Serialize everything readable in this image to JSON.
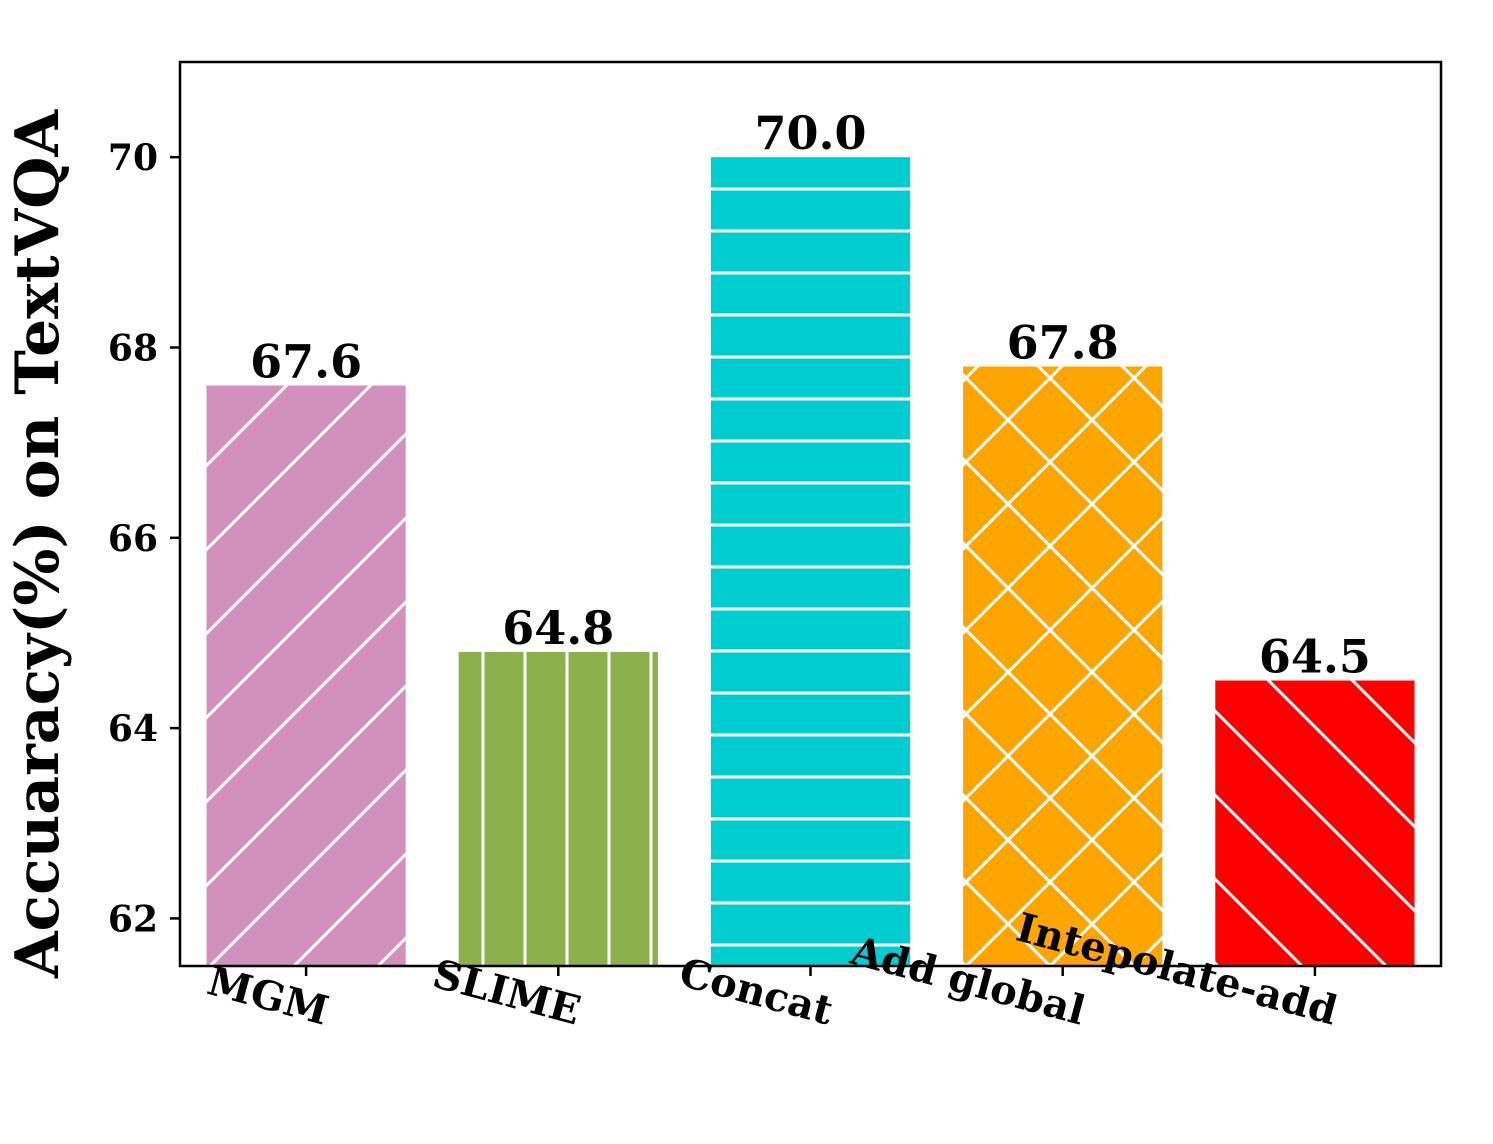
{
  "chart_data": {
    "type": "bar",
    "categories": [
      "MGM",
      "SLIME",
      "Concat",
      "Add global",
      "Intepolate-add"
    ],
    "values": [
      67.6,
      64.8,
      70.0,
      67.8,
      64.5
    ],
    "value_labels": [
      "67.6",
      "64.8",
      "70.0",
      "67.8",
      "64.5"
    ],
    "colors": [
      "#d291bc",
      "#8cb04b",
      "#00cdd0",
      "#ffa500",
      "#ff0000"
    ],
    "hatches": [
      "slash",
      "vertical",
      "horizontal",
      "cross",
      "backslash"
    ],
    "title": "",
    "xlabel": "",
    "ylabel": "Accuaracy(%) on TextVQA",
    "ylim": [
      61.5,
      71
    ],
    "yticks": [
      62,
      64,
      66,
      68,
      70
    ],
    "grid": false,
    "legend": "none"
  }
}
